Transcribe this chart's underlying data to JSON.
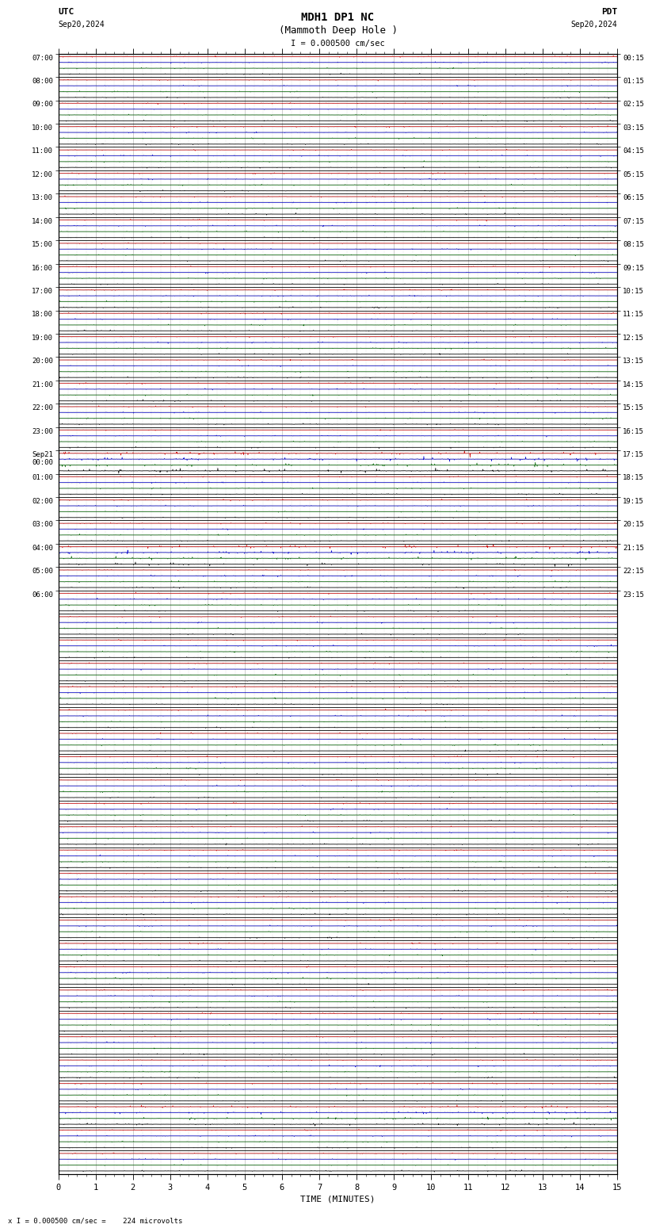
{
  "title_line1": "MDH1 DP1 NC",
  "title_line2": "(Mammoth Deep Hole )",
  "scale_label": "I = 0.000500 cm/sec",
  "utc_label": "UTC",
  "pdt_label": "PDT",
  "date_left": "Sep20,2024",
  "date_right": "Sep20,2024",
  "xlabel": "TIME (MINUTES)",
  "bottom_note": "x I = 0.000500 cm/sec =    224 microvolts",
  "xmin": 0,
  "xmax": 15,
  "num_rows": 48,
  "left_times_hourly": [
    "07:00",
    "08:00",
    "09:00",
    "10:00",
    "11:00",
    "12:00",
    "13:00",
    "14:00",
    "15:00",
    "16:00",
    "17:00",
    "18:00",
    "19:00",
    "20:00",
    "21:00",
    "22:00",
    "23:00",
    "Sep21\n00:00",
    "01:00",
    "02:00",
    "03:00",
    "04:00",
    "05:00",
    "06:00"
  ],
  "right_times_hourly": [
    "00:15",
    "01:15",
    "02:15",
    "03:15",
    "04:15",
    "05:15",
    "06:15",
    "07:15",
    "08:15",
    "09:15",
    "10:15",
    "11:15",
    "12:15",
    "13:15",
    "14:15",
    "15:15",
    "16:15",
    "17:15",
    "18:15",
    "19:15",
    "20:15",
    "21:15",
    "22:15",
    "23:15"
  ],
  "bg_color": "#ffffff",
  "trace_colors": [
    "#cc0000",
    "#0000cc",
    "#006600",
    "#000000"
  ],
  "grid_color": "#aaaaaa",
  "title_color": "#000000",
  "noise_seed": 42,
  "trace_amplitude": 0.018,
  "spike_probability": 0.04,
  "spike_amplitude": 0.06,
  "special_rows_amplitudes": {
    "17": 3.0,
    "21": 2.5,
    "45": 2.0
  }
}
